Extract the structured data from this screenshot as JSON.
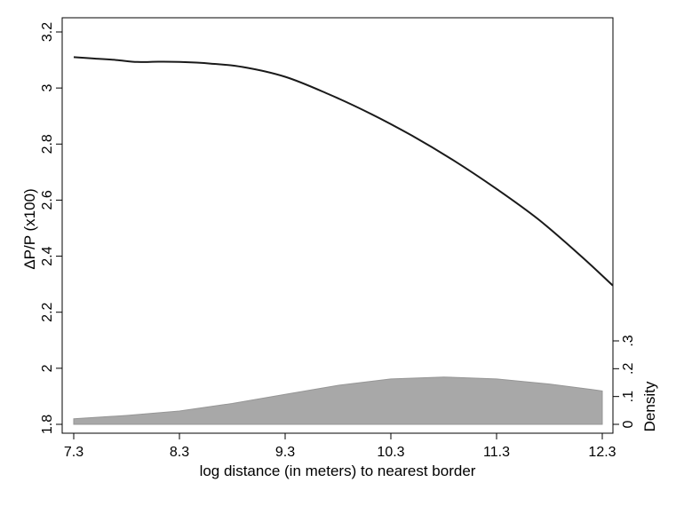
{
  "chart_data": {
    "type": "line",
    "xlabel": "log distance (in meters) to nearest border",
    "ylabel": "ΔP/P (x100)",
    "y2label": "Density",
    "xlim": [
      7.3,
      12.3
    ],
    "ylim": [
      1.8,
      3.2
    ],
    "y2lim": [
      0,
      0.3
    ],
    "xticks": [
      "7.3",
      "8.3",
      "9.3",
      "10.3",
      "11.3",
      "12.3"
    ],
    "yticks": [
      "1.8",
      "2",
      "2.2",
      "2.4",
      "2.6",
      "2.8",
      "3",
      "3.2"
    ],
    "y2ticks": [
      "0",
      ".1",
      ".2",
      ".3"
    ],
    "grid": false,
    "series": [
      {
        "type": "line",
        "color": "#1a1a1a",
        "x": [
          7.3,
          7.5,
          7.7,
          7.9,
          8.1,
          8.3,
          8.6,
          8.9,
          9.3,
          9.7,
          10.1,
          10.5,
          10.9,
          11.3,
          11.7,
          12.1,
          12.4
        ],
        "y": [
          3.11,
          3.105,
          3.1,
          3.093,
          3.094,
          3.093,
          3.087,
          3.075,
          3.04,
          2.98,
          2.91,
          2.83,
          2.74,
          2.64,
          2.53,
          2.4,
          2.295
        ]
      },
      {
        "type": "area",
        "axis": "y2",
        "color": "#a8a8a8",
        "x": [
          7.3,
          7.8,
          8.3,
          8.8,
          9.3,
          9.8,
          10.3,
          10.8,
          11.3,
          11.8,
          12.2,
          12.3
        ],
        "y": [
          0.02,
          0.032,
          0.048,
          0.075,
          0.108,
          0.14,
          0.163,
          0.17,
          0.163,
          0.145,
          0.125,
          0.12
        ]
      }
    ]
  }
}
